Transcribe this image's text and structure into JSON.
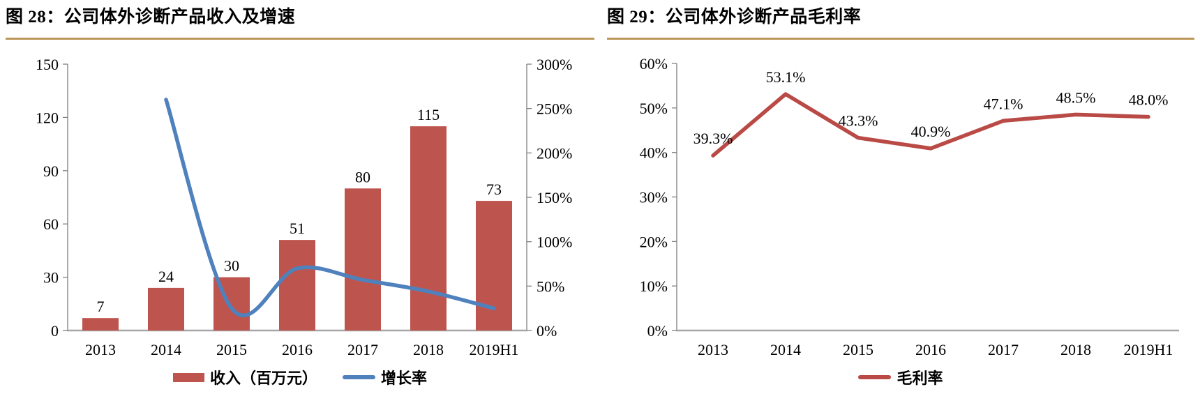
{
  "colors": {
    "bar_red": "#BE544E",
    "growth_line_blue": "#4F81BD",
    "margin_line_red": "#B94A45",
    "title_rule_gold": "#BC9659",
    "axis_line_gray": "#808080",
    "baseline_gray": "#A6A6A6",
    "text_black": "#000000"
  },
  "chart_data": [
    {
      "type": "bar",
      "subtype": "combo-bar-line",
      "title": "图 28：公司体外诊断产品收入及增速",
      "categories": [
        "2013",
        "2014",
        "2015",
        "2016",
        "2017",
        "2018",
        "2019H1"
      ],
      "series": [
        {
          "name": "收入（百万元）",
          "type": "bar",
          "axis": "left",
          "color": "#BE544E",
          "values": [
            7,
            24,
            30,
            51,
            80,
            115,
            73
          ],
          "data_labels": [
            "7",
            "24",
            "30",
            "51",
            "80",
            "115",
            "73"
          ]
        },
        {
          "name": "增长率",
          "type": "line",
          "axis": "right",
          "smooth": true,
          "color": "#4F81BD",
          "values": [
            null,
            260,
            25,
            70,
            57,
            44,
            25
          ],
          "values_estimated_from_pixels": true
        }
      ],
      "left_axis": {
        "min": 0,
        "max": 150,
        "step": 30,
        "tick_labels": [
          "0",
          "30",
          "60",
          "90",
          "120",
          "150"
        ]
      },
      "right_axis": {
        "min": 0,
        "max": 300,
        "step": 50,
        "tick_labels": [
          "0%",
          "50%",
          "100%",
          "150%",
          "200%",
          "250%",
          "300%"
        ]
      },
      "grid": false,
      "legend_position": "bottom"
    },
    {
      "type": "line",
      "title": "图 29：公司体外诊断产品毛利率",
      "categories": [
        "2013",
        "2014",
        "2015",
        "2016",
        "2017",
        "2018",
        "2019H1"
      ],
      "series": [
        {
          "name": "毛利率",
          "type": "line",
          "smooth": false,
          "color": "#B94A45",
          "values": [
            39.3,
            53.1,
            43.3,
            40.9,
            47.1,
            48.5,
            48.0
          ],
          "data_labels": [
            "39.3%",
            "53.1%",
            "43.3%",
            "40.9%",
            "47.1%",
            "48.5%",
            "48.0%"
          ]
        }
      ],
      "y_axis": {
        "min": 0,
        "max": 60,
        "step": 10,
        "tick_labels": [
          "0%",
          "10%",
          "20%",
          "30%",
          "40%",
          "50%",
          "60%"
        ]
      },
      "grid": false,
      "legend_position": "bottom"
    }
  ]
}
